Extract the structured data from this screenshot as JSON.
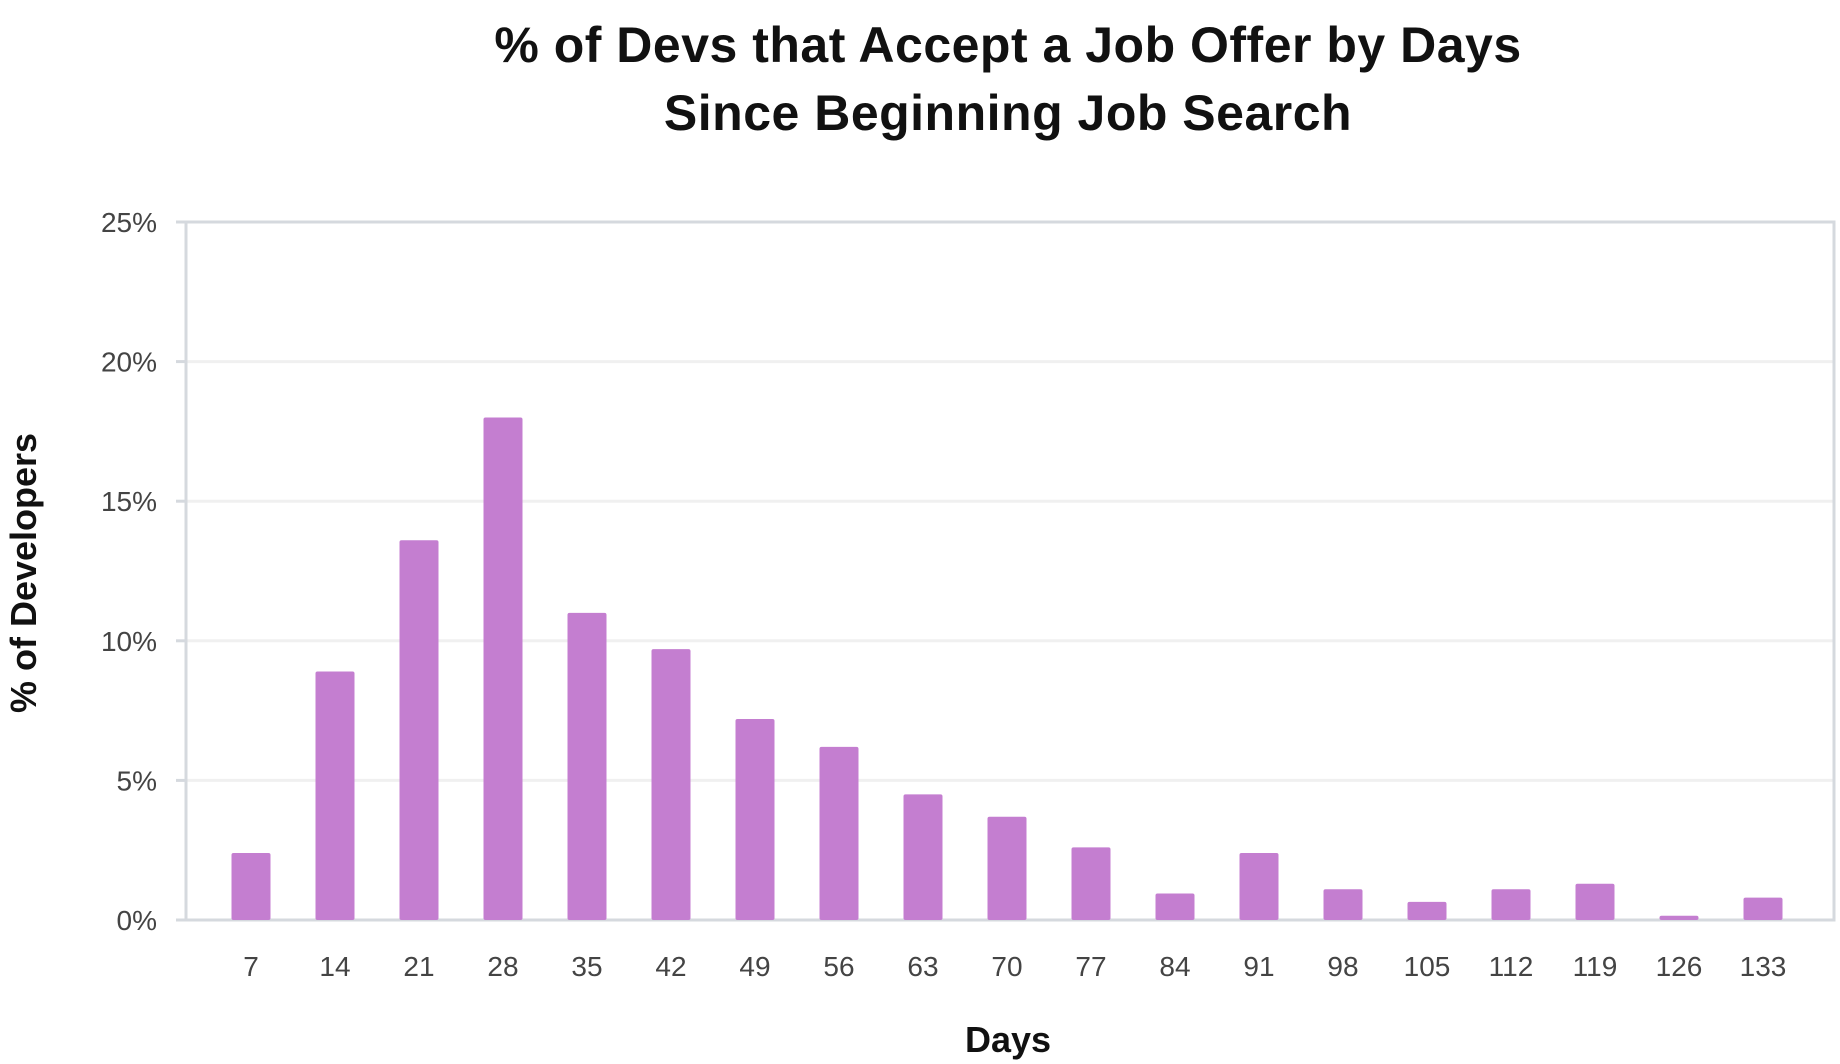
{
  "chart_data": {
    "type": "bar",
    "title_lines": [
      "% of Devs that Accept a Job Offer by Days",
      "Since Beginning Job Search"
    ],
    "xlabel": "Days",
    "ylabel": "% of Developers",
    "categories": [
      "7",
      "14",
      "21",
      "28",
      "35",
      "42",
      "49",
      "56",
      "63",
      "70",
      "77",
      "84",
      "91",
      "98",
      "105",
      "112",
      "119",
      "126",
      "133"
    ],
    "values": [
      2.4,
      8.9,
      13.6,
      18.0,
      11.0,
      9.7,
      7.2,
      6.2,
      4.5,
      3.7,
      2.6,
      0.95,
      2.4,
      1.1,
      0.65,
      1.1,
      1.3,
      0.15,
      0.8
    ],
    "ylim": [
      0,
      25
    ],
    "yticks": [
      0,
      5,
      10,
      15,
      20,
      25
    ],
    "ytick_labels": [
      "0%",
      "5%",
      "10%",
      "15%",
      "20%",
      "25%"
    ],
    "grid": true,
    "colors": {
      "bar": "#C47ED0",
      "grid": "#F0F0F0",
      "frame": "#D5D9DE"
    }
  }
}
